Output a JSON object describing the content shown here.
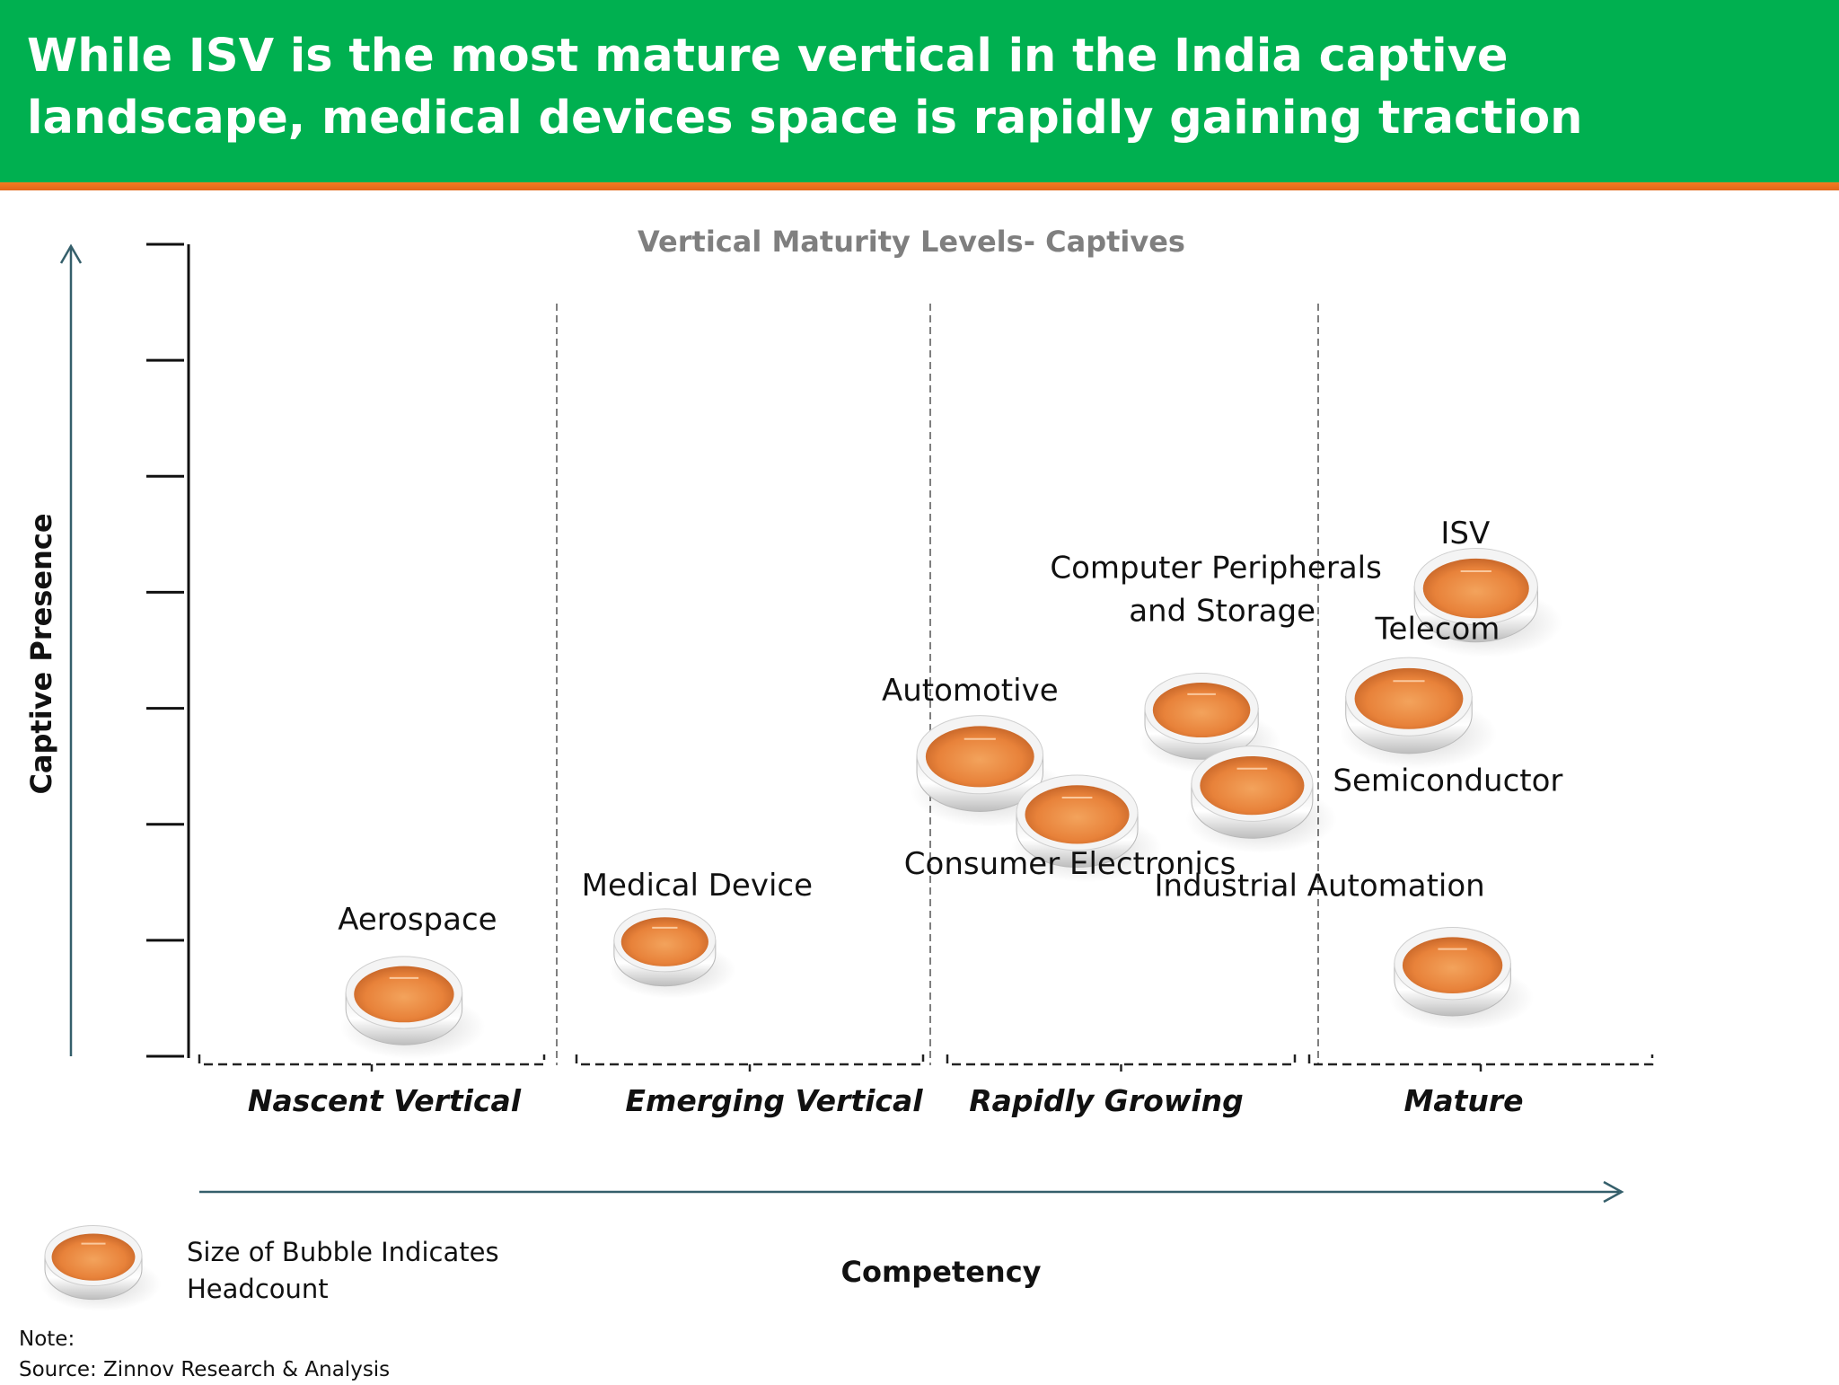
{
  "slide": {
    "title": "While ISV is the most mature vertical in the India captive landscape, medical devices space is rapidly gaining traction"
  },
  "colors": {
    "header_green": "#00b050",
    "header_rule_orange": "#f47b20",
    "bubble_orange": "#ef8a3c",
    "axis_teal": "#355f6b"
  },
  "chart_data": {
    "type": "scatter",
    "title": "Vertical Maturity Levels- Captives",
    "xlabel": "Competency",
    "ylabel": "Captive Presence",
    "x_categories": [
      "Nascent Vertical",
      "Emerging Vertical",
      "Rapidly Growing",
      "Mature"
    ],
    "xlim": [
      0,
      4
    ],
    "ylim": [
      0,
      7
    ],
    "y_ticks": [
      0,
      1,
      2,
      3,
      4,
      5,
      6,
      7
    ],
    "grid": false,
    "bubble_size_meaning": "headcount",
    "points": [
      {
        "name": "Aerospace",
        "x": 0.58,
        "y": 0.55,
        "size": 0.45
      },
      {
        "name": "Medical Device",
        "x": 1.29,
        "y": 1.0,
        "size": 0.3
      },
      {
        "name": "Automotive",
        "x": 2.13,
        "y": 2.6,
        "size": 0.55
      },
      {
        "name": "Consumer Electronics",
        "x": 2.38,
        "y": 2.1,
        "size": 0.5
      },
      {
        "name": "Computer Peripherals and Storage",
        "x": 2.7,
        "y": 3.0,
        "size": 0.42
      },
      {
        "name": "Semiconductor",
        "x": 2.83,
        "y": 2.35,
        "size": 0.5
      },
      {
        "name": "Telecom",
        "x": 3.27,
        "y": 3.1,
        "size": 0.55
      },
      {
        "name": "ISV",
        "x": 3.47,
        "y": 4.05,
        "size": 0.52
      },
      {
        "name": "Industrial Automation",
        "x": 3.4,
        "y": 0.8,
        "size": 0.45
      }
    ]
  },
  "legend": {
    "text": "Size of Bubble Indicates\nHeadcount"
  },
  "footer": {
    "note": "Note:",
    "source": "Source: Zinnov Research & Analysis"
  }
}
